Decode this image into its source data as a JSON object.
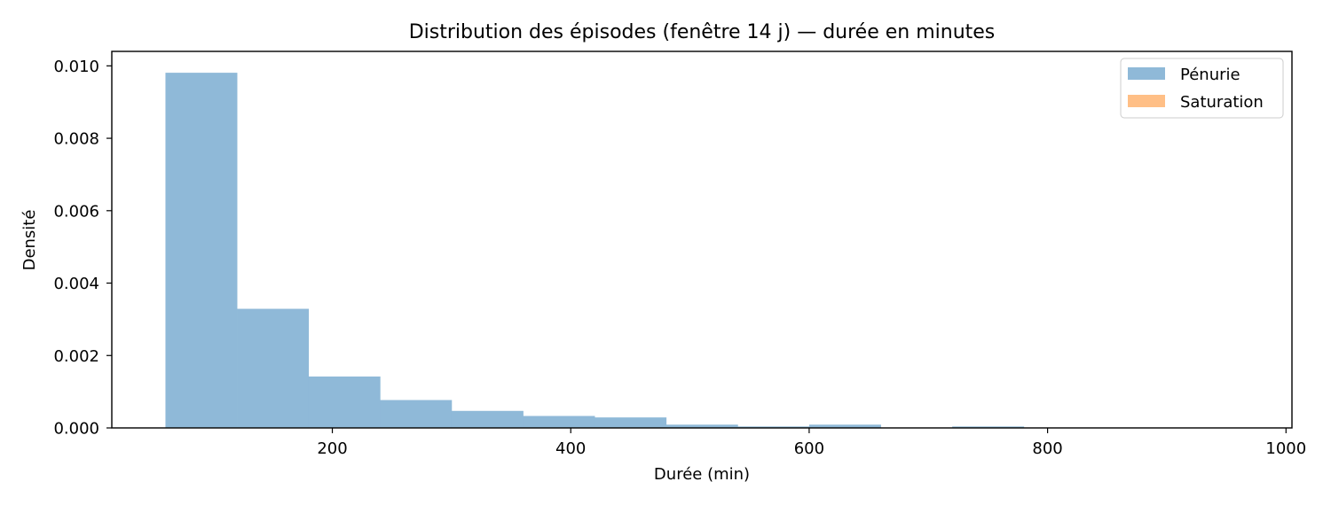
{
  "chart_data": {
    "type": "bar",
    "title": "Distribution des épisodes (fenêtre 14 j) — durée en minutes",
    "xlabel": "Durée (min)",
    "ylabel": "Densité",
    "xlim": [
      15,
      1005
    ],
    "ylim": [
      0,
      0.0104
    ],
    "xticks": [
      200,
      400,
      600,
      800,
      1000
    ],
    "yticks": [
      0.0,
      0.002,
      0.004,
      0.006,
      0.008,
      0.01
    ],
    "xtick_labels": [
      "200",
      "400",
      "600",
      "800",
      "1000"
    ],
    "ytick_labels": [
      "0.000",
      "0.002",
      "0.004",
      "0.006",
      "0.008",
      "0.010"
    ],
    "grid": false,
    "legend_position": "top-right",
    "series": [
      {
        "name": "Pénurie",
        "color": "#8fb9d8",
        "bins": [
          {
            "x0": 60,
            "x1": 120,
            "value": 0.00981
          },
          {
            "x0": 120,
            "x1": 180,
            "value": 0.00329
          },
          {
            "x0": 180,
            "x1": 240,
            "value": 0.00142
          },
          {
            "x0": 240,
            "x1": 300,
            "value": 0.00077
          },
          {
            "x0": 300,
            "x1": 360,
            "value": 0.00047
          },
          {
            "x0": 360,
            "x1": 420,
            "value": 0.00033
          },
          {
            "x0": 420,
            "x1": 480,
            "value": 0.00029
          },
          {
            "x0": 480,
            "x1": 540,
            "value": 9e-05
          },
          {
            "x0": 540,
            "x1": 600,
            "value": 4e-05
          },
          {
            "x0": 600,
            "x1": 660,
            "value": 9e-05
          },
          {
            "x0": 660,
            "x1": 720,
            "value": 0.0
          },
          {
            "x0": 720,
            "x1": 780,
            "value": 4e-05
          }
        ]
      },
      {
        "name": "Saturation",
        "color": "#ffbf86",
        "bins": []
      }
    ]
  }
}
